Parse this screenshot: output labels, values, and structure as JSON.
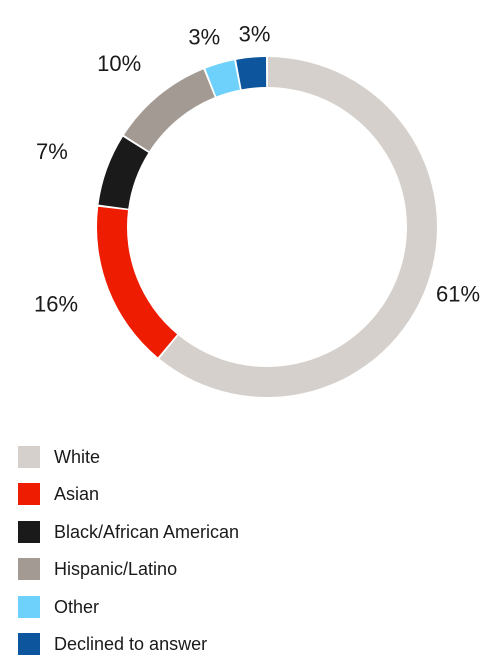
{
  "chart_data": {
    "type": "pie",
    "variant": "donut",
    "title": "",
    "legend_position": "bottom-left",
    "series": [
      {
        "name": "White",
        "value": 61,
        "label": "61%",
        "color": "#d5d0cb"
      },
      {
        "name": "Asian",
        "value": 16,
        "label": "16%",
        "color": "#ee1c00"
      },
      {
        "name": "Black/African American",
        "value": 7,
        "label": "7%",
        "color": "#1a1a1a"
      },
      {
        "name": "Hispanic/Latino",
        "value": 10,
        "label": "10%",
        "color": "#a39a93"
      },
      {
        "name": "Other",
        "value": 3,
        "label": "3%",
        "color": "#6dd1fb"
      },
      {
        "name": "Declined to answer",
        "value": 3,
        "label": "3%",
        "color": "#0d559d"
      }
    ]
  }
}
